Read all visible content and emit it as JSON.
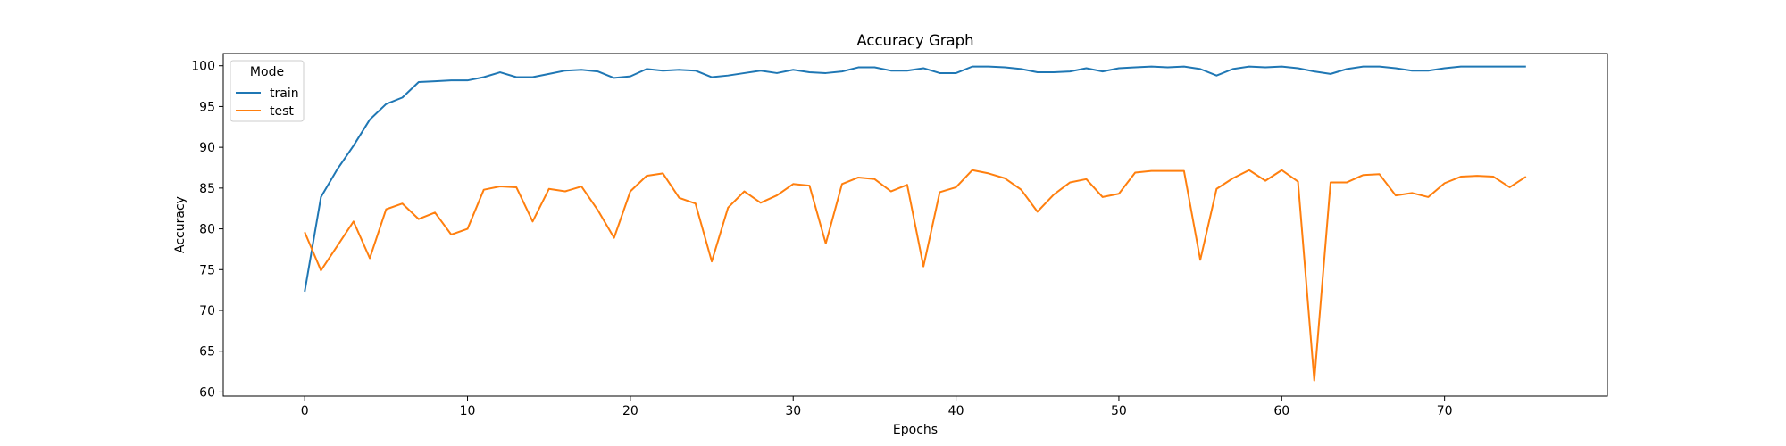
{
  "chart_data": {
    "type": "line",
    "title": "Accuracy Graph",
    "xlabel": "Epochs",
    "ylabel": "Accuracy",
    "xlim": [
      -5,
      80
    ],
    "ylim": [
      59.5,
      101.5
    ],
    "xticks": [
      0,
      10,
      20,
      30,
      40,
      50,
      60,
      70
    ],
    "yticks": [
      60,
      65,
      70,
      75,
      80,
      85,
      90,
      95,
      100
    ],
    "grid": false,
    "legend": {
      "title": "Mode",
      "position": "top-left"
    },
    "x": [
      0,
      1,
      2,
      3,
      4,
      5,
      6,
      7,
      8,
      9,
      10,
      11,
      12,
      13,
      14,
      15,
      16,
      17,
      18,
      19,
      20,
      21,
      22,
      23,
      24,
      25,
      26,
      27,
      28,
      29,
      30,
      31,
      32,
      33,
      34,
      35,
      36,
      37,
      38,
      39,
      40,
      41,
      42,
      43,
      44,
      45,
      46,
      47,
      48,
      49,
      50,
      51,
      52,
      53,
      54,
      55,
      56,
      57,
      58,
      59,
      60,
      61,
      62,
      63,
      64,
      65,
      66,
      67,
      68,
      69,
      70,
      71,
      72,
      73,
      74,
      75
    ],
    "series": [
      {
        "name": "train",
        "color": "#1f77b4",
        "values": [
          72.3,
          83.9,
          87.3,
          90.2,
          93.4,
          95.3,
          96.1,
          98.0,
          98.1,
          98.2,
          98.2,
          98.6,
          99.2,
          98.6,
          98.6,
          99.0,
          99.4,
          99.5,
          99.3,
          98.5,
          98.7,
          99.6,
          99.4,
          99.5,
          99.4,
          98.6,
          98.8,
          99.1,
          99.4,
          99.1,
          99.5,
          99.2,
          99.1,
          99.3,
          99.8,
          99.8,
          99.4,
          99.4,
          99.7,
          99.1,
          99.1,
          99.9,
          99.9,
          99.8,
          99.6,
          99.2,
          99.2,
          99.3,
          99.7,
          99.3,
          99.7,
          99.8,
          99.9,
          99.8,
          99.9,
          99.6,
          98.8,
          99.6,
          99.9,
          99.8,
          99.9,
          99.7,
          99.3,
          99.0,
          99.6,
          99.9,
          99.9,
          99.7,
          99.4,
          99.4,
          99.7,
          99.9,
          99.9,
          99.9,
          99.9,
          99.9
        ]
      },
      {
        "name": "test",
        "color": "#ff7f0e",
        "values": [
          79.6,
          74.9,
          77.9,
          80.9,
          76.4,
          82.4,
          83.1,
          81.2,
          82.0,
          79.3,
          80.0,
          84.8,
          85.2,
          85.1,
          80.9,
          84.9,
          84.6,
          85.2,
          82.3,
          78.9,
          84.6,
          86.5,
          86.8,
          83.8,
          83.1,
          76.0,
          82.6,
          84.6,
          83.2,
          84.1,
          85.5,
          85.3,
          78.2,
          85.5,
          86.3,
          86.1,
          84.6,
          85.4,
          75.4,
          84.5,
          85.1,
          87.2,
          86.8,
          86.2,
          84.8,
          82.1,
          84.2,
          85.7,
          86.1,
          83.9,
          84.3,
          86.9,
          87.1,
          87.1,
          87.1,
          76.2,
          84.9,
          86.2,
          87.2,
          85.9,
          87.2,
          85.8,
          61.4,
          85.7,
          85.7,
          86.6,
          86.7,
          84.1,
          84.4,
          83.9,
          85.6,
          86.4,
          86.5,
          86.4,
          85.1,
          86.4
        ]
      }
    ]
  }
}
